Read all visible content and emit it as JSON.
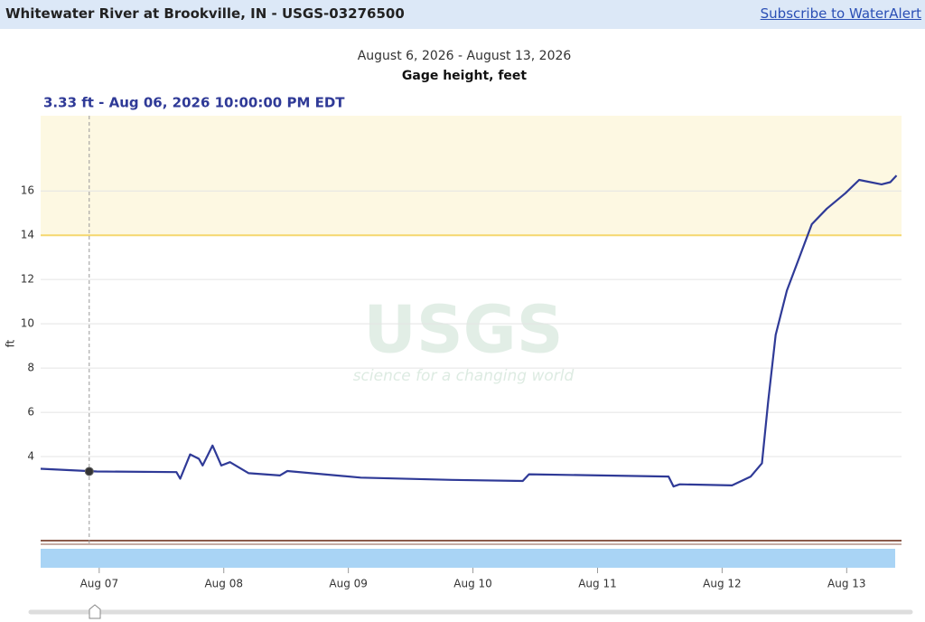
{
  "header": {
    "title": "Whitewater River at Brookville, IN - USGS-03276500",
    "link": "Subscribe to WaterAlert"
  },
  "chart_data": {
    "type": "line",
    "title": "August 6, 2026 - August 13, 2026",
    "subtitle": "Gage height, feet",
    "y_label": "ft",
    "watermark": {
      "logo": "USGS",
      "tagline": "science for a changing world"
    },
    "tooltip": {
      "label": "3.33 ft - Aug 06, 2026 10:00:00 PM EDT",
      "x": 6.92,
      "y": 3.33
    },
    "threshold": 14,
    "color": "#2f3a97",
    "x": [
      6.53,
      6.98,
      7.62,
      7.65,
      7.73,
      7.8,
      7.83,
      7.91,
      7.98,
      8.05,
      8.2,
      8.45,
      8.51,
      9.1,
      9.83,
      10.4,
      10.45,
      11.57,
      11.61,
      11.66,
      12.08,
      12.23,
      12.32,
      12.37,
      12.43,
      12.52,
      12.62,
      12.72,
      12.84,
      12.99,
      13.1,
      13.28,
      13.35,
      13.4
    ],
    "values": [
      3.45,
      3.33,
      3.3,
      3.0,
      4.1,
      3.9,
      3.6,
      4.5,
      3.6,
      3.75,
      3.25,
      3.15,
      3.35,
      3.05,
      2.95,
      2.9,
      3.2,
      3.1,
      2.65,
      2.75,
      2.7,
      3.1,
      3.7,
      6.5,
      9.5,
      11.5,
      13.0,
      14.5,
      15.2,
      15.9,
      16.5,
      16.3,
      16.4,
      16.7
    ],
    "xlim": [
      6.53,
      13.44
    ],
    "xticks": [
      {
        "value": 7,
        "label": "Aug 07"
      },
      {
        "value": 8,
        "label": "Aug 08"
      },
      {
        "value": 9,
        "label": "Aug 09"
      },
      {
        "value": 10,
        "label": "Aug 10"
      },
      {
        "value": 11,
        "label": "Aug 11"
      },
      {
        "value": 12,
        "label": "Aug 12"
      },
      {
        "value": 13,
        "label": "Aug 13"
      }
    ],
    "ylim": [
      0,
      19.4
    ],
    "yticks": [
      4,
      6,
      8,
      10,
      12,
      14,
      16
    ],
    "grid": true
  }
}
